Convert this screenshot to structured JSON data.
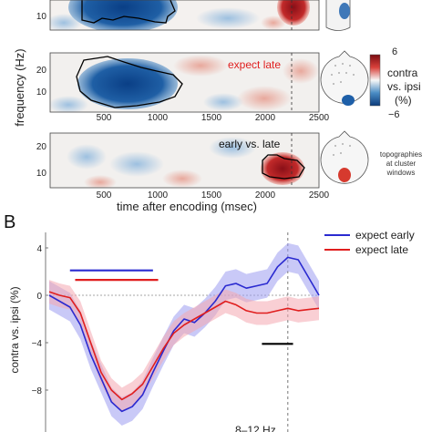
{
  "panel_a": {
    "ylabel": "frequency (Hz)",
    "xlabel": "time after encoding (msec)",
    "x_ticks": [
      "500",
      "1000",
      "1500",
      "2000",
      "2500"
    ],
    "row_labels": [
      "",
      "expect late",
      "early vs. late"
    ],
    "y_ticks": [
      [
        "10"
      ],
      [
        "20",
        "10"
      ],
      [
        "20",
        "10"
      ]
    ],
    "colorbar": {
      "max": "6",
      "min": "−6",
      "label_lines": [
        "contra",
        "vs. ipsi",
        "(%)"
      ]
    },
    "topo_note": [
      "topographies",
      "at cluster",
      "windows"
    ]
  },
  "panel_b": {
    "letter": "B",
    "ylabel": "contra vs. ipsi (%)",
    "bottom_text": "8–12 Hz",
    "y_ticks": [
      "4",
      "0",
      "−4",
      "−8"
    ]
  },
  "colors": {
    "early": "#2a2ad0",
    "late": "#e01e1e",
    "early_band": "#9c9cf0",
    "late_band": "#f4a8b0",
    "sig_bar": "#000000"
  },
  "chart_data": [
    {
      "type": "heatmap",
      "title": "",
      "xlabel": "time after encoding (msec)",
      "ylabel": "frequency (Hz)",
      "xlim": [
        0,
        2500
      ],
      "clim": [
        -6,
        6
      ],
      "rows": [
        {
          "label": "",
          "ylim": [
            5,
            20
          ],
          "cluster": {
            "sign": "negative",
            "t": [
              350,
              1150
            ],
            "f": [
              9,
              20
            ]
          }
        },
        {
          "label": "expect late",
          "ylim": [
            5,
            25
          ],
          "cluster": {
            "sign": "negative",
            "t": [
              350,
              1250
            ],
            "f": [
              8,
              18
            ]
          }
        },
        {
          "label": "early vs. late",
          "ylim": [
            5,
            25
          ],
          "cluster": {
            "sign": "positive",
            "t": [
              2000,
              2350
            ],
            "f": [
              8,
              14
            ]
          }
        }
      ]
    },
    {
      "type": "line",
      "title": "",
      "xlabel": "",
      "ylabel": "contra vs. ipsi (%)",
      "xlim": [
        -100,
        2500
      ],
      "ylim": [
        -10,
        5.5
      ],
      "reference_lines": {
        "y": 0,
        "x_dashed": 2200
      },
      "x": [
        -100,
        0,
        100,
        200,
        300,
        400,
        500,
        600,
        700,
        800,
        900,
        1000,
        1100,
        1200,
        1300,
        1400,
        1500,
        1600,
        1700,
        1800,
        1900,
        2000,
        2100,
        2200,
        2300,
        2400,
        2500
      ],
      "series": [
        {
          "name": "expect early",
          "color": "#2a2ad0",
          "values": [
            0,
            -0.5,
            -1,
            -2.5,
            -5,
            -7,
            -9,
            -9.8,
            -9.4,
            -8.4,
            -6.5,
            -4.7,
            -3,
            -2,
            -2.3,
            -1.5,
            -0.5,
            0.8,
            1,
            0.6,
            0.8,
            1,
            2.4,
            3.2,
            3,
            1.5,
            0
          ],
          "band_halfwidth": 1.2
        },
        {
          "name": "expect late",
          "color": "#e01e1e",
          "values": [
            0.3,
            0,
            -0.2,
            -1.5,
            -4,
            -6.5,
            -8,
            -8.8,
            -8.3,
            -7.5,
            -6,
            -4.5,
            -3.2,
            -2.5,
            -2,
            -1.5,
            -1,
            -0.5,
            -0.8,
            -1.3,
            -1.5,
            -1.5,
            -1.3,
            -1.1,
            -1.3,
            -1.2,
            -1.1
          ],
          "band_halfwidth": 1.0
        }
      ],
      "significance_bars": [
        {
          "series": "expect early",
          "x": [
            100,
            900
          ],
          "y": 2.1
        },
        {
          "series": "expect late",
          "x": [
            150,
            950
          ],
          "y": 1.3
        },
        {
          "series": "difference",
          "x": [
            1950,
            2250
          ],
          "y": -4.1
        }
      ]
    }
  ]
}
